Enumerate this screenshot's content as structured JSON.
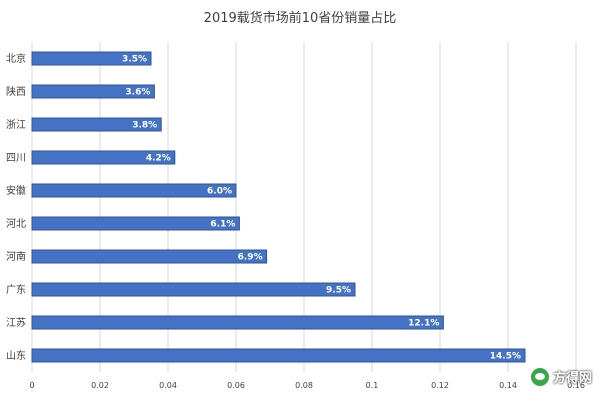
{
  "chart_data": {
    "type": "bar",
    "orientation": "horizontal",
    "title": "2019载货市场前10省份销量占比",
    "categories": [
      "北京",
      "陕西",
      "浙江",
      "四川",
      "安徽",
      "河北",
      "河南",
      "广东",
      "江苏",
      "山东"
    ],
    "values": [
      0.035,
      0.036,
      0.038,
      0.042,
      0.06,
      0.061,
      0.069,
      0.095,
      0.121,
      0.145
    ],
    "data_labels": [
      "3.5%",
      "3.6%",
      "3.8%",
      "4.2%",
      "6.0%",
      "6.1%",
      "6.9%",
      "9.5%",
      "12.1%",
      "14.5%"
    ],
    "xlim": [
      0,
      0.16
    ],
    "x_ticks": [
      "0",
      "0.02",
      "0.04",
      "0.06",
      "0.08",
      "0.1",
      "0.12",
      "0.14",
      "0.16"
    ],
    "x_tick_values": [
      0,
      0.02,
      0.04,
      0.06,
      0.08,
      0.1,
      0.12,
      0.14,
      0.16
    ],
    "grid": true,
    "bar_color": "#4472c4",
    "bar_border_color": "#2f5597",
    "grid_color": "#d9d9d9"
  },
  "watermark": {
    "text": "方得网",
    "icon": "wechat-icon"
  }
}
